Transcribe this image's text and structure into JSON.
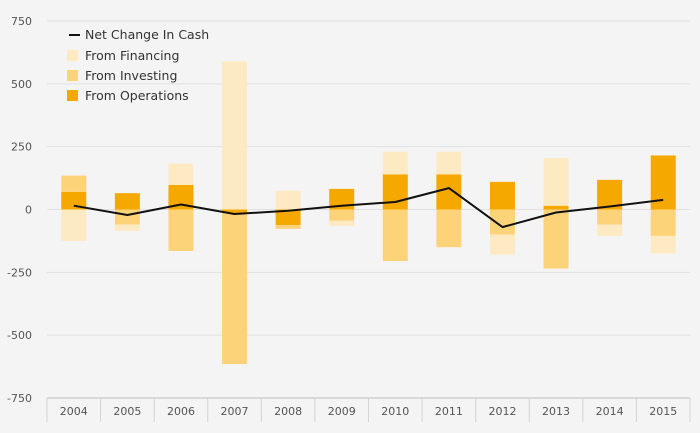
{
  "chart_data": {
    "type": "bar",
    "title": "",
    "xlabel": "",
    "ylabel": "",
    "categories": [
      "2004",
      "2005",
      "2006",
      "2007",
      "2008",
      "2009",
      "2010",
      "2011",
      "2012",
      "2013",
      "2014",
      "2015"
    ],
    "ylim": [
      -750,
      750
    ],
    "yticks": [
      750,
      500,
      250,
      0,
      -250,
      -500,
      -750
    ],
    "grid": true,
    "stacked": true,
    "legend_position": "top-left",
    "series": [
      {
        "name": "From Operations",
        "kind": "bar",
        "color": "#f5a800",
        "values": [
          70,
          65,
          98,
          -15,
          -62,
          82,
          140,
          140,
          110,
          15,
          118,
          215
        ]
      },
      {
        "name": "From Investing",
        "kind": "bar",
        "color": "#fdd37a",
        "values": [
          65,
          -60,
          -165,
          -600,
          -15,
          -45,
          -205,
          -150,
          -100,
          -235,
          -60,
          -105
        ]
      },
      {
        "name": "From Financing",
        "kind": "bar",
        "color": "#fdeac3",
        "values": [
          -125,
          -25,
          85,
          590,
          75,
          -20,
          90,
          90,
          -80,
          190,
          -45,
          -70
        ]
      },
      {
        "name": "Net Change In Cash",
        "kind": "line",
        "color": "#111111",
        "values": [
          15,
          -22,
          20,
          -18,
          -5,
          15,
          30,
          85,
          -70,
          -12,
          12,
          38
        ]
      }
    ]
  }
}
